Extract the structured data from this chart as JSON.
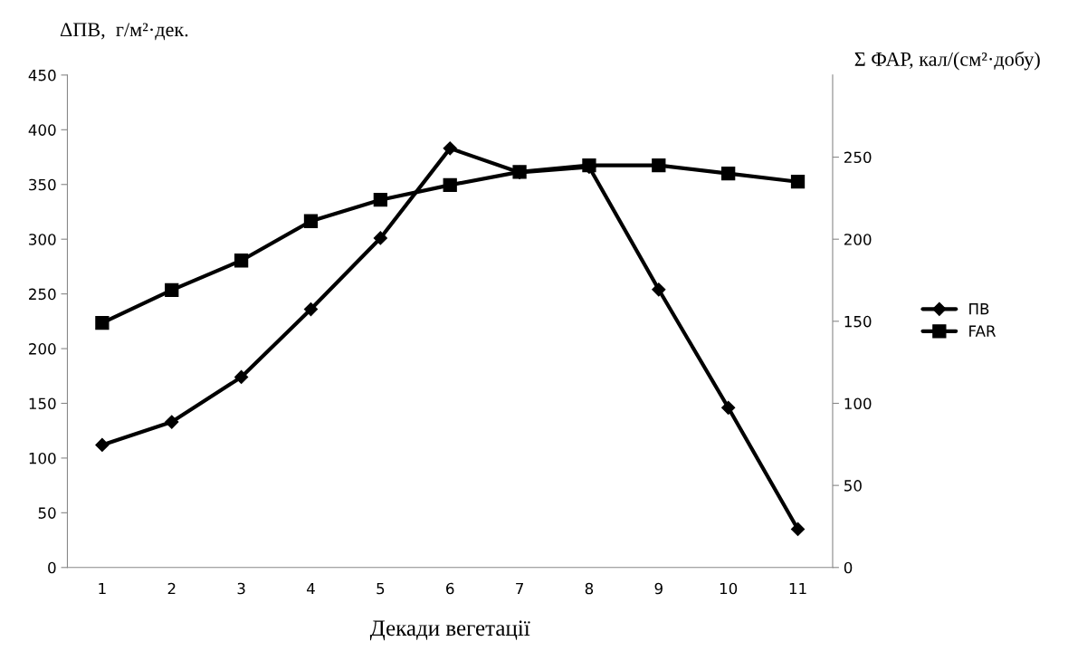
{
  "chart_data": {
    "type": "line",
    "xlabel": "Декади вегетації",
    "ylabel": "ΔПВ,  г/м²·дек.",
    "y2label": "Σ ФАР, кал/(см²·добу)",
    "categories": [
      "1",
      "2",
      "3",
      "4",
      "5",
      "6",
      "7",
      "8",
      "9",
      "10",
      "11"
    ],
    "series": [
      {
        "name": "ПВ",
        "color": "#000000",
        "marker": "diamond",
        "values": [
          112,
          133,
          174,
          236,
          301,
          383,
          361,
          366,
          254,
          146,
          35
        ]
      },
      {
        "name": "FAR",
        "color": "#000000",
        "marker": "square",
        "axis": "y2",
        "values": [
          149,
          169,
          187,
          211,
          224,
          233,
          241,
          245,
          245,
          240,
          235
        ]
      }
    ],
    "ylim": [
      0,
      450
    ],
    "yticks": [
      0,
      50,
      100,
      150,
      200,
      250,
      300,
      350,
      400,
      450
    ],
    "y2lim": [
      0,
      300
    ],
    "y2ticks": [
      0,
      50,
      100,
      150,
      200,
      250
    ],
    "grid": false,
    "legend": "right",
    "line_style": "solid"
  }
}
